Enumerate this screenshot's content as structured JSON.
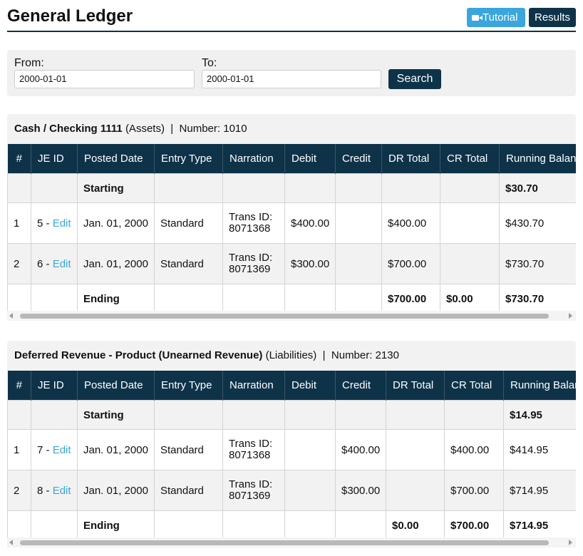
{
  "header": {
    "title": "General Ledger",
    "buttons": [
      "Tutorial",
      "Results"
    ]
  },
  "filter": {
    "from_label": "From:",
    "from_value": "2000-01-01",
    "to_label": "To:",
    "to_value": "2000-01-01",
    "search": "Search"
  },
  "ledgers": [
    {
      "account": "Cash / Checking 1111",
      "kind": "(Assets)",
      "separator": "|",
      "number": "Number: 1010",
      "columns": [
        "#",
        "JE ID",
        "Posted Date",
        "Entry Type",
        "Narration",
        "Debit",
        "Credit",
        "DR Total",
        "CR Total",
        "Running Balance"
      ],
      "rows": [
        [
          null,
          null,
          "Starting",
          null,
          null,
          null,
          null,
          null,
          null,
          "$30.70"
        ],
        [
          "1",
          [
            "5 -",
            "Edit"
          ],
          "Jan. 01, 2000",
          "Standard",
          "Trans ID: 8071368",
          "$400.00",
          null,
          "$400.00",
          null,
          "$430.70"
        ],
        [
          "2",
          [
            "6 -",
            "Edit"
          ],
          "Jan. 01, 2000",
          "Standard",
          "Trans ID: 8071369",
          "$300.00",
          null,
          "$700.00",
          null,
          "$730.70"
        ],
        [
          null,
          null,
          "Ending",
          null,
          null,
          null,
          null,
          "$700.00",
          "$0.00",
          "$730.70"
        ]
      ]
    },
    {
      "account": "Deferred Revenue - Product (Unearned Revenue)",
      "kind": "(Liabilities)",
      "separator": "|",
      "number": "Number: 2130",
      "columns": [
        "#",
        "JE ID",
        "Posted Date",
        "Entry Type",
        "Narration",
        "Debit",
        "Credit",
        "DR Total",
        "CR Total",
        "Running Balance"
      ],
      "rows": [
        [
          null,
          null,
          "Starting",
          null,
          null,
          null,
          null,
          null,
          null,
          "$14.95"
        ],
        [
          "1",
          [
            "7 -",
            "Edit"
          ],
          "Jan. 01, 2000",
          "Standard",
          "Trans ID: 8071368",
          null,
          "$400.00",
          null,
          "$400.00",
          "$414.95"
        ],
        [
          "2",
          [
            "8 -",
            "Edit"
          ],
          "Jan. 01, 2000",
          "Standard",
          "Trans ID: 8071369",
          null,
          "$300.00",
          null,
          "$700.00",
          "$714.95"
        ],
        [
          null,
          null,
          "Ending",
          null,
          null,
          null,
          null,
          "$0.00",
          "$700.00",
          "$714.95"
        ]
      ]
    }
  ]
}
